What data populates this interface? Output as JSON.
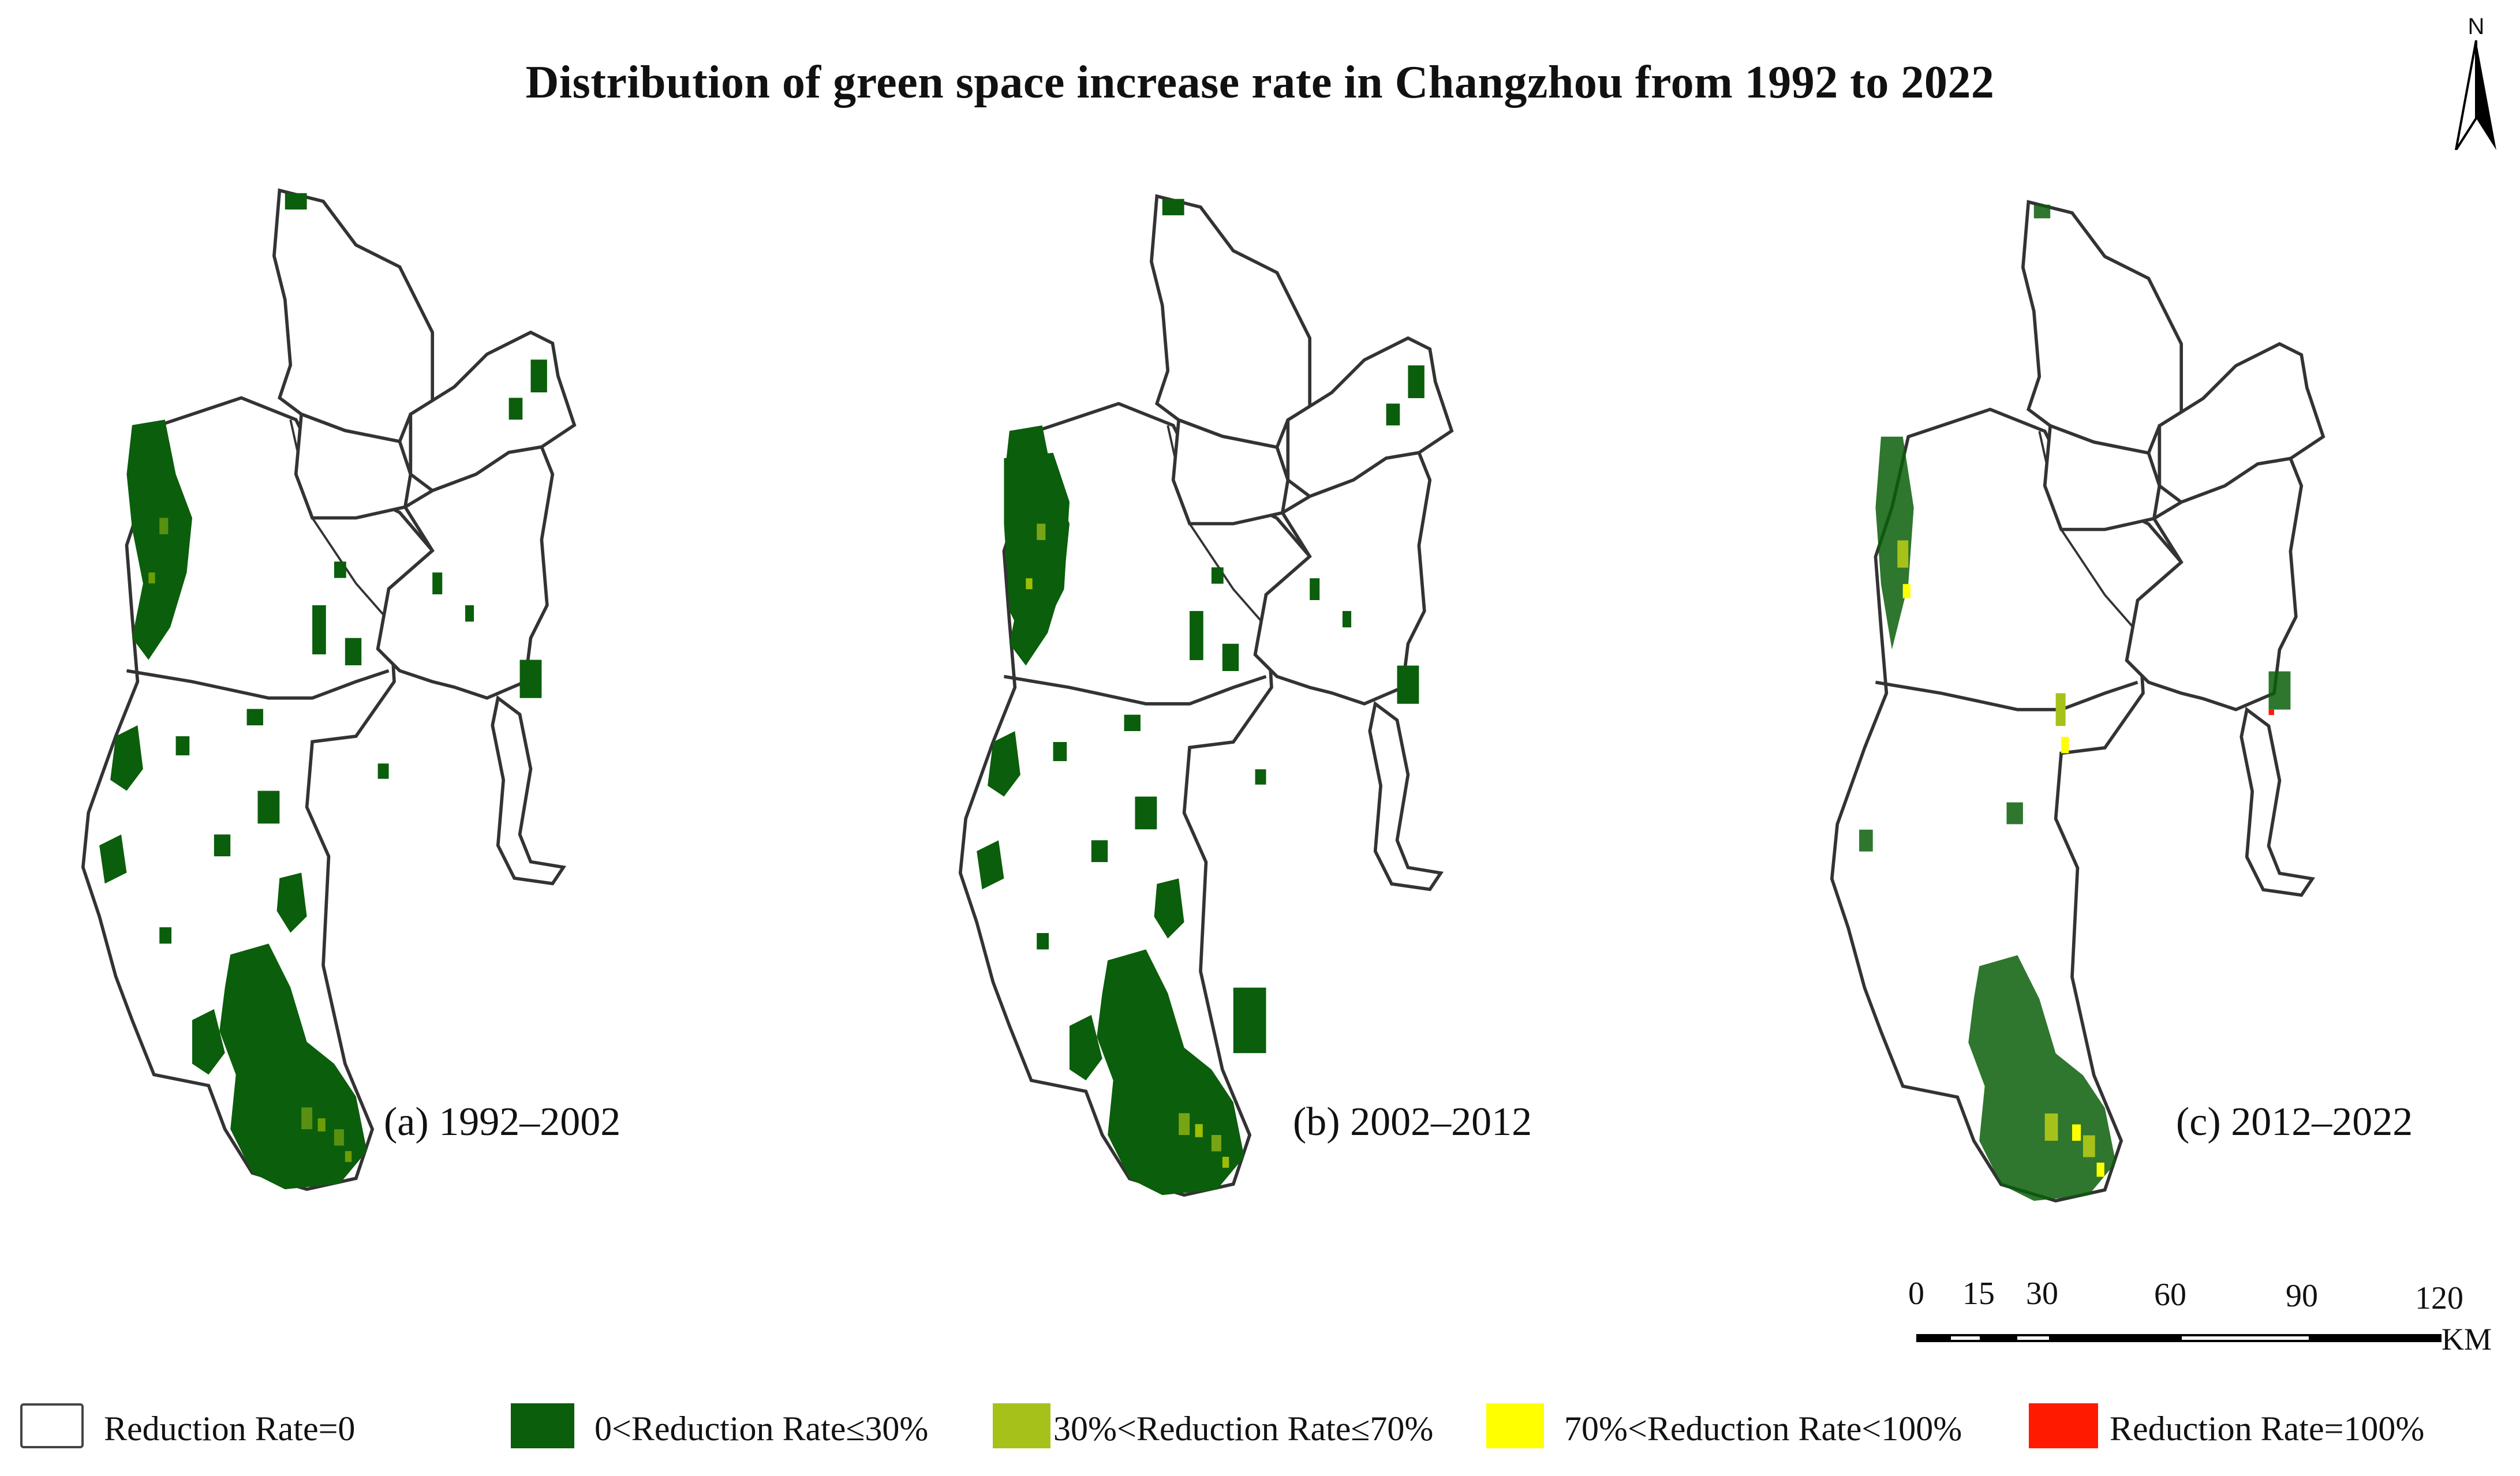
{
  "title": "Distribution of green space increase rate in Changzhou from 1992 to 2022",
  "north_arrow": {
    "letter": "N",
    "icon": "north-arrow-icon"
  },
  "panels": [
    {
      "label": "(a) 1992–2002"
    },
    {
      "label": "(b) 2002–2012"
    },
    {
      "label": "(c) 2012–2022"
    }
  ],
  "scale_bar": {
    "ticks": [
      "0",
      "15",
      "30",
      "60",
      "90",
      "120"
    ],
    "tick_values_km": [
      0,
      15,
      30,
      60,
      90,
      120
    ],
    "unit": "KM"
  },
  "legend": [
    {
      "label": "Reduction Rate=0",
      "color": "#ffffff"
    },
    {
      "label": "0<Reduction Rate≤30%",
      "color": "#0b5e0b"
    },
    {
      "label": "30%<Reduction Rate≤70%",
      "color": "#a6c21a"
    },
    {
      "label": "70%<Reduction Rate<100%",
      "color": "#ffff00"
    },
    {
      "label": "Reduction Rate=100%",
      "color": "#ff1a00"
    }
  ]
}
